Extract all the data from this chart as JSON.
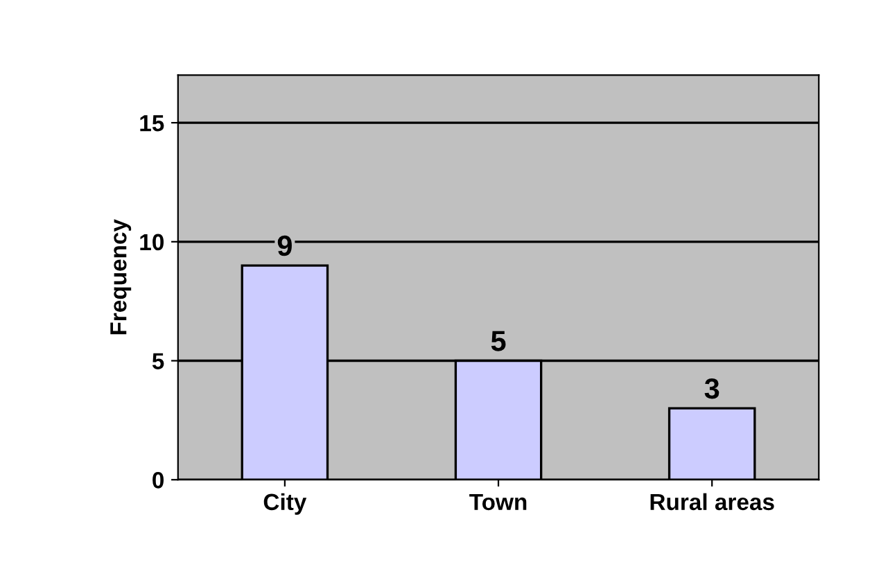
{
  "chart_data": {
    "type": "bar",
    "ylabel": "Frequency",
    "categories": [
      "City",
      "Town",
      "Rural areas"
    ],
    "values": [
      9,
      5,
      3
    ],
    "color": "#ccccff",
    "ylim": [
      0,
      17
    ],
    "yticks": [
      0,
      5,
      10,
      15
    ],
    "grid": "y",
    "data_labels": true,
    "legend": false
  }
}
